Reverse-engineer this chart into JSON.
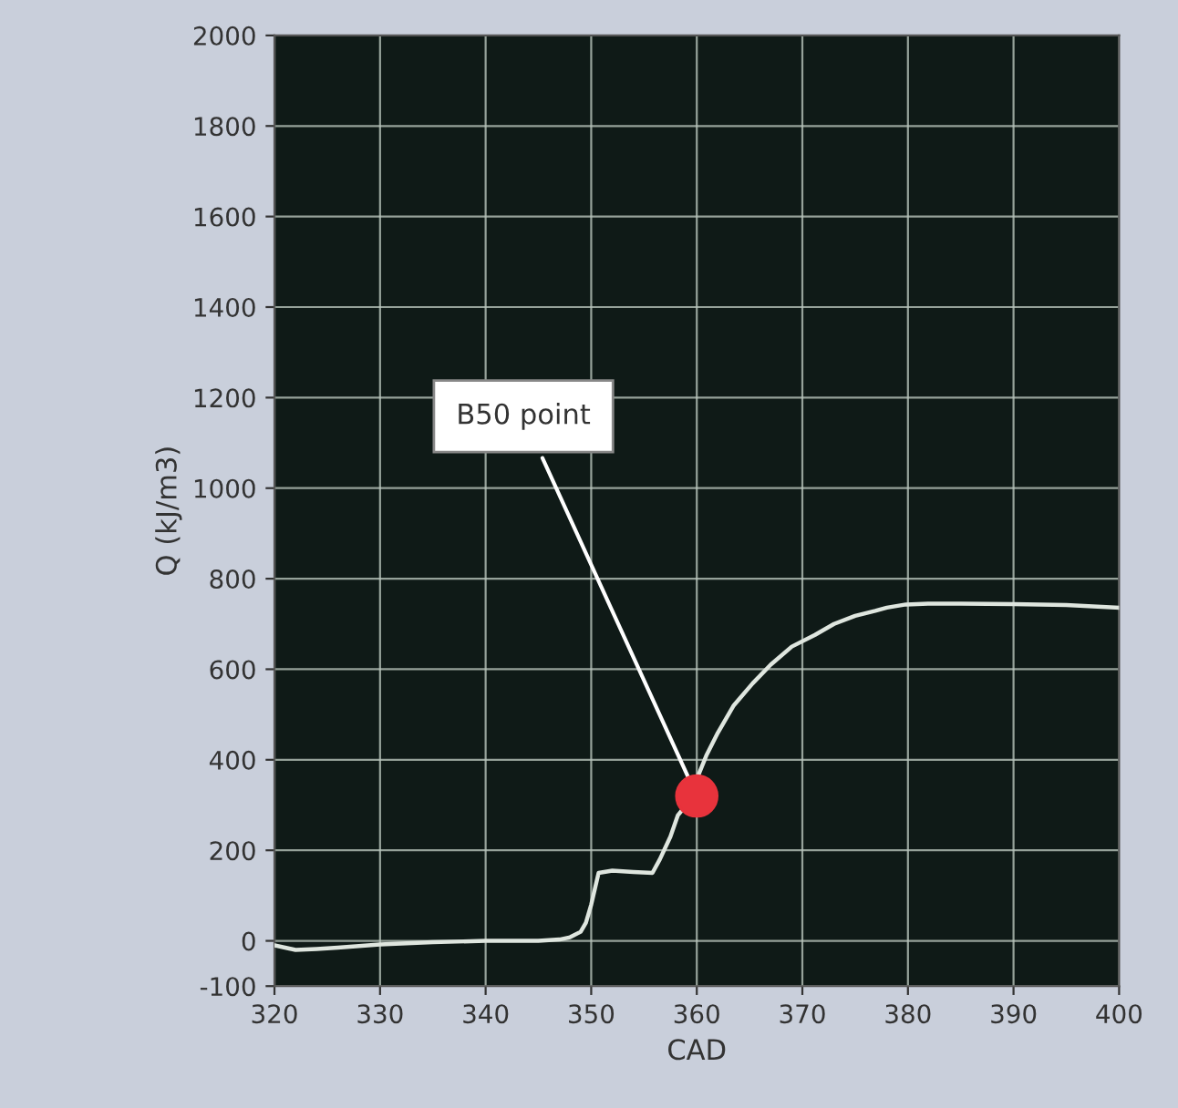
{
  "chart_data": {
    "type": "line",
    "xlabel": "CAD",
    "ylabel": "Q (kJ/m3)",
    "xlim": [
      320,
      400
    ],
    "ylim": [
      -100,
      2000
    ],
    "xticks": [
      320,
      330,
      340,
      350,
      360,
      370,
      380,
      390,
      400
    ],
    "yticks": [
      -100,
      0,
      200,
      400,
      600,
      800,
      1000,
      1200,
      1400,
      1600,
      1800,
      2000
    ],
    "grid": true,
    "legend": false,
    "series": [
      {
        "color": "#dfe6df",
        "x": [
          320,
          321,
          322,
          324,
          326,
          330,
          335,
          340,
          345,
          347,
          348,
          349,
          349.5,
          350,
          350.7,
          352,
          354,
          355.8,
          356.5,
          357.5,
          358.2,
          359,
          360.9,
          362,
          363.5,
          365.3,
          367,
          369,
          371.2,
          373,
          375,
          376.9,
          378,
          379.8,
          382,
          385,
          390,
          395,
          400
        ],
        "values": [
          -10,
          -15,
          -20,
          -18,
          -15,
          -8,
          -3,
          0,
          0,
          3,
          8,
          20,
          40,
          80,
          150,
          155,
          152,
          150,
          180,
          230,
          277,
          300,
          409,
          460,
          520,
          569,
          610,
          650,
          676,
          700,
          718,
          729,
          736,
          743,
          745,
          745,
          744,
          742,
          736
        ]
      },
      {
        "type": "scatter",
        "color": "#e8333c",
        "marker": "circle",
        "x": [
          360
        ],
        "values": [
          320
        ]
      }
    ],
    "annotations": [
      {
        "text": "B50 point",
        "x": 360,
        "y": 320
      }
    ]
  }
}
